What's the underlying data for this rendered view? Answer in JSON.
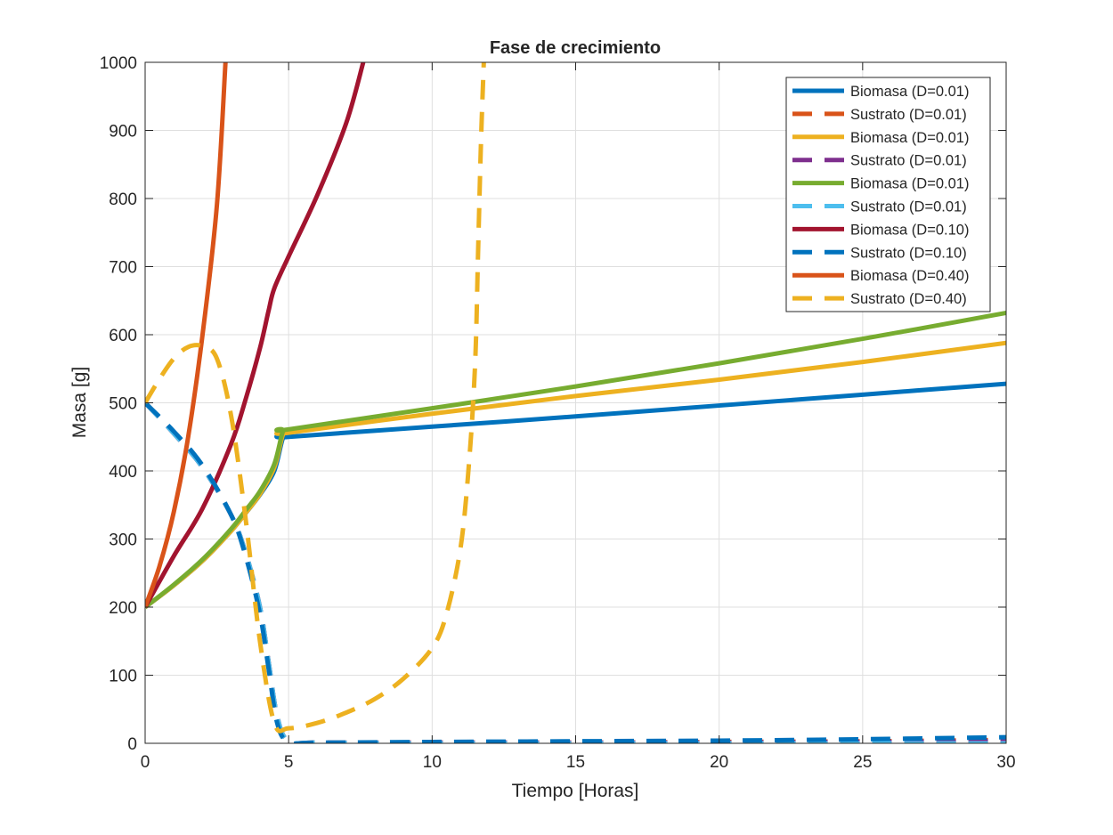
{
  "chart_data": {
    "type": "line",
    "title": "Fase de crecimiento",
    "xlabel": "Tiempo [Horas]",
    "ylabel": "Masa [g]",
    "xlim": [
      0,
      30
    ],
    "ylim": [
      0,
      1000
    ],
    "xticks": [
      "0",
      "5",
      "10",
      "15",
      "20",
      "25",
      "30"
    ],
    "yticks": [
      "0",
      "100",
      "200",
      "300",
      "400",
      "500",
      "600",
      "700",
      "800",
      "900",
      "1000"
    ],
    "grid": true,
    "legend_position": "top-right",
    "series": [
      {
        "name": "Biomasa (D=0.01)",
        "color": "#0072BD",
        "dash": false,
        "x": [
          0,
          1,
          2,
          3,
          3.5,
          4,
          4.5,
          4.8,
          5,
          10,
          15,
          20,
          25,
          30
        ],
        "y": [
          200,
          232,
          268,
          312,
          338,
          365,
          400,
          448,
          450,
          465,
          480,
          496,
          512,
          528
        ]
      },
      {
        "name": "Sustrato (D=0.01)",
        "color": "#D95319",
        "dash": true,
        "x": [
          0,
          1,
          2,
          3,
          3.5,
          4,
          4.3,
          4.6,
          5,
          6,
          10,
          15,
          20,
          25,
          30
        ],
        "y": [
          500,
          455,
          405,
          335,
          280,
          200,
          120,
          40,
          3,
          1,
          1,
          1,
          2,
          3,
          5
        ]
      },
      {
        "name": "Biomasa (D=0.01)",
        "color": "#EDB120",
        "dash": false,
        "x": [
          0,
          1,
          2,
          3,
          3.5,
          4,
          4.5,
          4.8,
          5,
          10,
          15,
          20,
          25,
          30
        ],
        "y": [
          200,
          232,
          268,
          312,
          338,
          366,
          405,
          453,
          456,
          484,
          510,
          534,
          560,
          588
        ]
      },
      {
        "name": "Sustrato (D=0.01)",
        "color": "#7E2F8E",
        "dash": true,
        "x": [
          0,
          1,
          2,
          3,
          3.5,
          4,
          4.3,
          4.6,
          5,
          6,
          10,
          15,
          20,
          25,
          30
        ],
        "y": [
          500,
          455,
          405,
          335,
          280,
          200,
          120,
          40,
          3,
          1,
          1,
          1,
          1,
          2,
          3
        ]
      },
      {
        "name": "Biomasa (D=0.01)",
        "color": "#77AC30",
        "dash": false,
        "x": [
          0,
          1,
          2,
          3,
          3.5,
          4,
          4.5,
          4.8,
          5,
          10,
          15,
          20,
          25,
          30
        ],
        "y": [
          200,
          233,
          270,
          315,
          342,
          370,
          410,
          458,
          461,
          492,
          524,
          558,
          594,
          632
        ]
      },
      {
        "name": "Sustrato (D=0.01)",
        "color": "#4DBEEE",
        "dash": true,
        "x": [
          0,
          1,
          2,
          3,
          3.5,
          4,
          4.3,
          4.6,
          5,
          6,
          10,
          15,
          20,
          25,
          30
        ],
        "y": [
          500,
          455,
          405,
          335,
          280,
          200,
          120,
          40,
          3,
          1,
          0,
          0,
          0,
          0,
          0
        ]
      },
      {
        "name": "Biomasa (D=0.10)",
        "color": "#A2142F",
        "dash": false,
        "x": [
          0,
          1,
          2,
          3,
          3.5,
          4,
          4.3,
          4.5,
          5,
          6,
          7,
          7.6
        ],
        "y": [
          200,
          275,
          345,
          440,
          505,
          580,
          635,
          668,
          715,
          805,
          910,
          1000
        ]
      },
      {
        "name": "Sustrato (D=0.10)",
        "color": "#0072BD",
        "dash": true,
        "x": [
          0,
          1,
          2,
          3,
          3.5,
          4,
          4.3,
          4.6,
          5,
          6,
          10,
          15,
          20,
          25,
          30
        ],
        "y": [
          500,
          458,
          408,
          335,
          275,
          190,
          110,
          30,
          2,
          1,
          2,
          3,
          4,
          6,
          9
        ]
      },
      {
        "name": "Biomasa (D=0.40)",
        "color": "#D95319",
        "dash": false,
        "x": [
          0,
          0.5,
          1,
          1.5,
          2,
          2.5,
          2.8
        ],
        "y": [
          200,
          260,
          340,
          450,
          600,
          790,
          1000
        ]
      },
      {
        "name": "Sustrato (D=0.40)",
        "color": "#EDB120",
        "dash": true,
        "x": [
          0,
          0.5,
          1,
          1.5,
          2,
          2.5,
          3,
          3.5,
          4,
          4.5,
          5,
          6,
          7,
          8,
          9,
          10,
          10.5,
          11,
          11.3,
          11.5,
          11.6,
          11.7,
          11.8
        ],
        "y": [
          500,
          535,
          565,
          582,
          583,
          565,
          480,
          330,
          150,
          30,
          22,
          30,
          45,
          65,
          95,
          140,
          190,
          290,
          420,
          560,
          720,
          880,
          1000
        ]
      }
    ]
  }
}
